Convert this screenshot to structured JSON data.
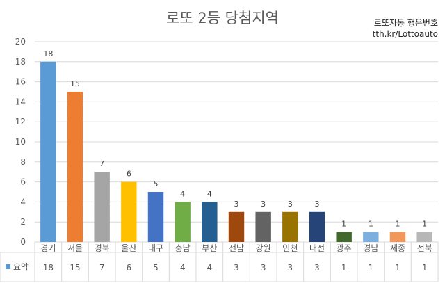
{
  "chart_data": {
    "type": "bar",
    "title": "로또 2등 당첨지역",
    "annotations": [
      "로또자동 행운번호",
      "tth.kr/Lottoauto"
    ],
    "categories": [
      "경기",
      "서울",
      "경북",
      "울산",
      "대구",
      "충남",
      "부산",
      "전남",
      "강원",
      "인천",
      "대전",
      "광주",
      "경남",
      "세종",
      "전북"
    ],
    "series": [
      {
        "name": "요약",
        "values": [
          18,
          15,
          7,
          6,
          5,
          4,
          4,
          3,
          3,
          3,
          3,
          1,
          1,
          1,
          1
        ]
      }
    ],
    "colors": [
      "#5B9BD5",
      "#ED7D31",
      "#A5A5A5",
      "#FFC000",
      "#4472C4",
      "#70AD47",
      "#255E91",
      "#9E480E",
      "#636363",
      "#997300",
      "#264478",
      "#43682B",
      "#7CAFDD",
      "#F1975A",
      "#B7B7B7"
    ],
    "ylim": [
      0,
      20
    ],
    "yticks": [
      0,
      2,
      4,
      6,
      8,
      10,
      12,
      14,
      16,
      18,
      20
    ],
    "grid": true,
    "legend": "data-table"
  }
}
